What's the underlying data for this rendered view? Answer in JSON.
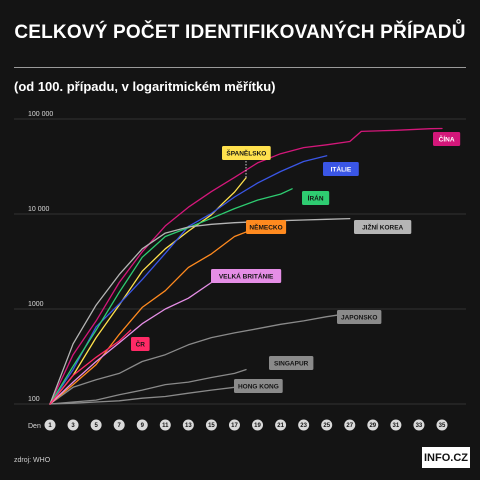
{
  "header": {
    "title": "CELKOVÝ POČET IDENTIFIKOVANÝCH PŘÍPADŮ",
    "subtitle": "(od 100. případu, v logaritmickém měřítku)"
  },
  "footer": {
    "source": "zdroj: WHO",
    "logo": "INFO.CZ"
  },
  "chart_data": {
    "type": "line",
    "xlabel": "Den",
    "x_ticks": [
      1,
      3,
      5,
      7,
      9,
      11,
      13,
      15,
      17,
      19,
      21,
      23,
      25,
      27,
      29,
      31,
      33,
      35
    ],
    "x_range": [
      1,
      35
    ],
    "y_scale": "log",
    "ylim": [
      100,
      100000
    ],
    "y_ticks": [
      {
        "value": 100,
        "label": "100"
      },
      {
        "value": 1000,
        "label": "1000"
      },
      {
        "value": 10000,
        "label": "10 000"
      },
      {
        "value": 100000,
        "label": "100 000"
      }
    ],
    "grid": "horizontal",
    "legend": "inline labels",
    "series": [
      {
        "name": "ČÍNA",
        "color": "#d4177a",
        "text_color": "#ffffff",
        "points": [
          [
            1,
            100
          ],
          [
            3,
            330
          ],
          [
            5,
            750
          ],
          [
            7,
            1900
          ],
          [
            9,
            4000
          ],
          [
            11,
            7500
          ],
          [
            13,
            11800
          ],
          [
            15,
            17200
          ],
          [
            17,
            24300
          ],
          [
            19,
            34500
          ],
          [
            21,
            43100
          ],
          [
            23,
            50000
          ],
          [
            25,
            53500
          ],
          [
            27,
            58000
          ],
          [
            28,
            74000
          ],
          [
            31,
            76000
          ],
          [
            34,
            79000
          ],
          [
            35,
            79500
          ]
        ]
      },
      {
        "name": "ŠPANĚLSKO",
        "color": "#ffe14d",
        "text_color": "#141414",
        "points": [
          [
            1,
            100
          ],
          [
            3,
            200
          ],
          [
            5,
            500
          ],
          [
            7,
            1100
          ],
          [
            9,
            2500
          ],
          [
            11,
            4300
          ],
          [
            13,
            6600
          ],
          [
            15,
            9800
          ],
          [
            16,
            13000
          ],
          [
            17,
            17000
          ],
          [
            18,
            24000
          ]
        ]
      },
      {
        "name": "ITÁLIE",
        "color": "#3a56e6",
        "text_color": "#ffffff",
        "points": [
          [
            1,
            100
          ],
          [
            3,
            230
          ],
          [
            5,
            650
          ],
          [
            7,
            1130
          ],
          [
            9,
            2040
          ],
          [
            11,
            3860
          ],
          [
            13,
            7400
          ],
          [
            15,
            10150
          ],
          [
            17,
            15100
          ],
          [
            19,
            21150
          ],
          [
            21,
            27980
          ],
          [
            23,
            35700
          ],
          [
            25,
            41000
          ]
        ]
      },
      {
        "name": "ÍRÁN",
        "color": "#2ecc71",
        "text_color": "#141414",
        "points": [
          [
            1,
            100
          ],
          [
            3,
            250
          ],
          [
            5,
            600
          ],
          [
            7,
            1500
          ],
          [
            9,
            3500
          ],
          [
            11,
            5800
          ],
          [
            13,
            7200
          ],
          [
            15,
            9000
          ],
          [
            17,
            11400
          ],
          [
            19,
            14000
          ],
          [
            21,
            16200
          ],
          [
            22,
            18400
          ]
        ]
      },
      {
        "name": "NĚMECKO",
        "color": "#ff8a1f",
        "text_color": "#141414",
        "points": [
          [
            1,
            100
          ],
          [
            3,
            160
          ],
          [
            5,
            260
          ],
          [
            7,
            540
          ],
          [
            9,
            1040
          ],
          [
            11,
            1560
          ],
          [
            13,
            2740
          ],
          [
            15,
            3800
          ],
          [
            17,
            5800
          ],
          [
            19,
            7200
          ],
          [
            20,
            8200
          ]
        ]
      },
      {
        "name": "JIŽNÍ KOREA",
        "color": "#b5b5b5",
        "text_color": "#141414",
        "points": [
          [
            1,
            100
          ],
          [
            3,
            430
          ],
          [
            5,
            1100
          ],
          [
            7,
            2300
          ],
          [
            9,
            4300
          ],
          [
            11,
            6300
          ],
          [
            13,
            7300
          ],
          [
            15,
            7800
          ],
          [
            17,
            8100
          ],
          [
            19,
            8300
          ],
          [
            21,
            8500
          ],
          [
            23,
            8650
          ],
          [
            25,
            8800
          ],
          [
            27,
            8950
          ]
        ]
      },
      {
        "name": "VELKÁ BRITÁNIE",
        "color": "#e58ee6",
        "text_color": "#141414",
        "points": [
          [
            1,
            100
          ],
          [
            3,
            170
          ],
          [
            5,
            280
          ],
          [
            7,
            440
          ],
          [
            9,
            700
          ],
          [
            11,
            1000
          ],
          [
            13,
            1300
          ],
          [
            15,
            1900
          ]
        ]
      },
      {
        "name": "ČR",
        "color": "#ff2a66",
        "text_color": "#141414",
        "points": [
          [
            1,
            100
          ],
          [
            3,
            200
          ],
          [
            5,
            310
          ],
          [
            7,
            460
          ],
          [
            8,
            600
          ]
        ]
      },
      {
        "name": "JAPONSKO",
        "color": "#8a8a8a",
        "text_color": "#141414",
        "points": [
          [
            1,
            100
          ],
          [
            3,
            150
          ],
          [
            5,
            180
          ],
          [
            7,
            210
          ],
          [
            9,
            280
          ],
          [
            11,
            330
          ],
          [
            13,
            420
          ],
          [
            15,
            500
          ],
          [
            17,
            560
          ],
          [
            19,
            620
          ],
          [
            21,
            690
          ],
          [
            23,
            750
          ],
          [
            25,
            830
          ],
          [
            27,
            900
          ]
        ]
      },
      {
        "name": "SINGAPUR",
        "color": "#8a8a8a",
        "text_color": "#141414",
        "points": [
          [
            1,
            100
          ],
          [
            3,
            105
          ],
          [
            5,
            110
          ],
          [
            7,
            125
          ],
          [
            9,
            140
          ],
          [
            11,
            160
          ],
          [
            13,
            170
          ],
          [
            15,
            190
          ],
          [
            17,
            210
          ],
          [
            18,
            230
          ]
        ]
      },
      {
        "name": "HONG KONG",
        "color": "#8a8a8a",
        "text_color": "#141414",
        "points": [
          [
            1,
            100
          ],
          [
            3,
            102
          ],
          [
            5,
            105
          ],
          [
            7,
            108
          ],
          [
            9,
            115
          ],
          [
            11,
            120
          ],
          [
            13,
            130
          ],
          [
            15,
            140
          ],
          [
            17,
            150
          ]
        ]
      }
    ]
  }
}
